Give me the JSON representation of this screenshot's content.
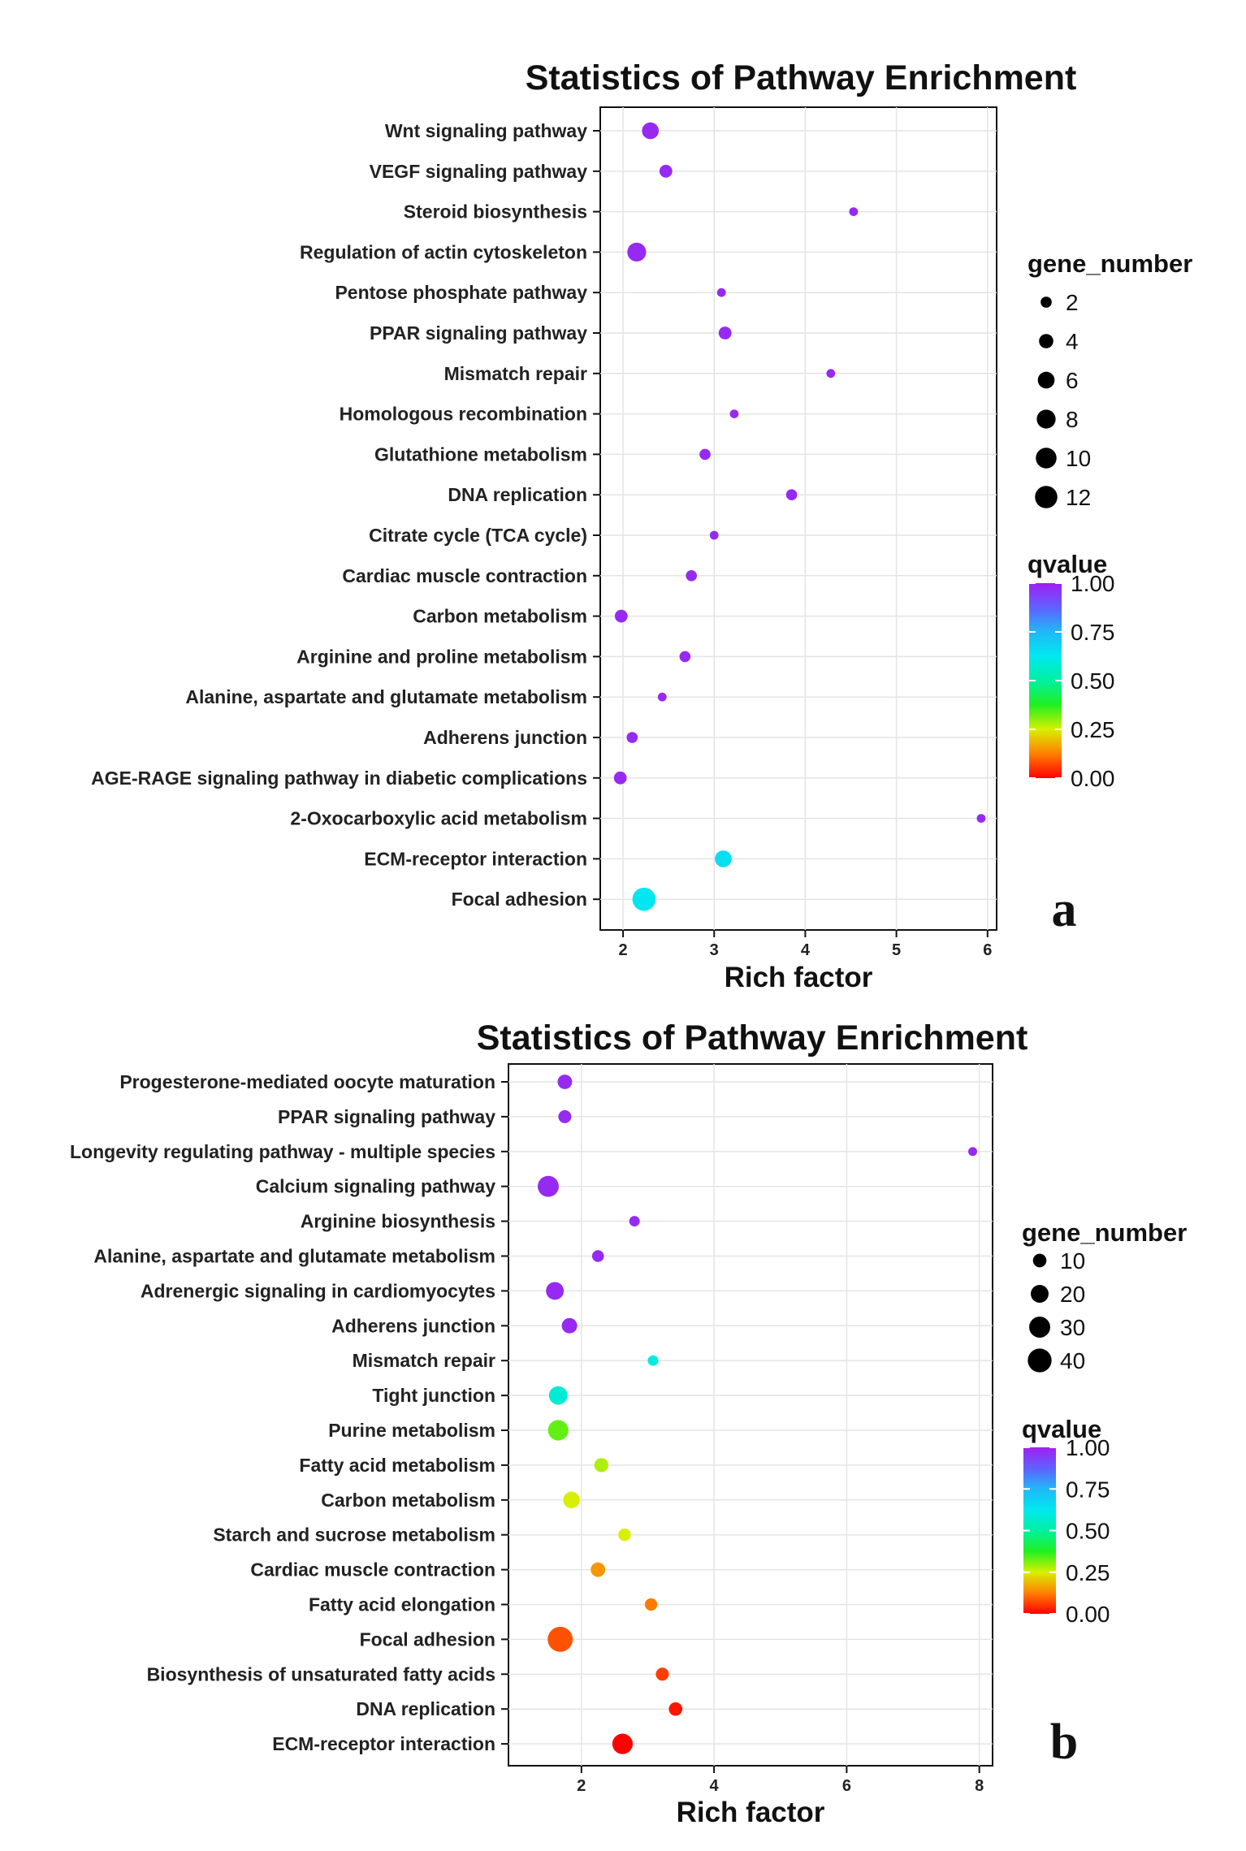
{
  "chart_data": [
    {
      "panel_label": "a",
      "type": "scatter",
      "title": "Statistics of Pathway Enrichment",
      "xlabel": "Rich factor",
      "ylabel": "",
      "xlim": [
        1.75,
        6.1
      ],
      "xticks": [
        "2",
        "3",
        "4",
        "5",
        "6"
      ],
      "grid": true,
      "categories": [
        "Wnt signaling pathway",
        "VEGF signaling pathway",
        "Steroid biosynthesis",
        "Regulation of actin cytoskeleton",
        "Pentose phosphate pathway",
        "PPAR signaling pathway",
        "Mismatch repair",
        "Homologous recombination",
        "Glutathione metabolism",
        "DNA replication",
        "Citrate cycle (TCA cycle)",
        "Cardiac muscle contraction",
        "Carbon metabolism",
        "Arginine and proline metabolism",
        "Alanine, aspartate and glutamate metabolism",
        "Adherens junction",
        "AGE-RAGE signaling pathway in diabetic complications",
        "2-Oxocarboxylic acid metabolism",
        "ECM-receptor interaction",
        "Focal adhesion"
      ],
      "rich_factor": [
        2.3,
        2.47,
        4.53,
        2.15,
        3.08,
        3.12,
        4.28,
        3.22,
        2.9,
        3.85,
        3.0,
        2.75,
        1.98,
        2.68,
        2.43,
        2.1,
        1.97,
        5.93,
        3.1,
        2.23
      ],
      "gene_number": [
        6,
        3,
        1,
        8,
        1,
        3,
        1,
        1,
        2,
        2,
        1,
        2,
        3,
        2,
        1,
        2,
        3,
        1,
        6,
        13
      ],
      "qvalue": [
        0.98,
        0.98,
        0.98,
        0.98,
        0.98,
        0.98,
        0.98,
        0.98,
        0.98,
        0.98,
        0.98,
        0.98,
        0.98,
        0.98,
        0.98,
        0.98,
        0.98,
        0.98,
        0.65,
        0.63
      ],
      "size_legend": {
        "title": "gene_number",
        "values": [
          2,
          4,
          6,
          8,
          10,
          12
        ],
        "labels": [
          "2",
          "4",
          "6",
          "8",
          "10",
          "12"
        ]
      },
      "color_legend": {
        "title": "qvalue",
        "labels": [
          "1.00",
          "0.75",
          "0.50",
          "0.25",
          "0.00"
        ],
        "values": [
          1.0,
          0.75,
          0.5,
          0.25,
          0.0
        ]
      }
    },
    {
      "panel_label": "b",
      "type": "scatter",
      "title": "Statistics of Pathway Enrichment",
      "xlabel": "Rich factor",
      "ylabel": "",
      "xlim": [
        0.9,
        8.2
      ],
      "xticks": [
        "2",
        "4",
        "6",
        "8"
      ],
      "grid": true,
      "categories": [
        "Progesterone-mediated oocyte maturation",
        "PPAR signaling pathway",
        "Longevity regulating pathway - multiple species",
        "Calcium signaling pathway",
        "Arginine biosynthesis",
        "Alanine, aspartate and glutamate metabolism",
        "Adrenergic signaling in cardiomyocytes",
        "Adherens junction",
        "Mismatch repair",
        "Tight junction",
        "Purine metabolism",
        "Fatty acid metabolism",
        "Carbon metabolism",
        "Starch and sucrose metabolism",
        "Cardiac muscle contraction",
        "Fatty acid elongation",
        "Focal adhesion",
        "Biosynthesis of unsaturated fatty acids",
        "DNA replication",
        "ECM-receptor interaction"
      ],
      "rich_factor": [
        1.75,
        1.75,
        7.9,
        1.5,
        2.8,
        2.25,
        1.6,
        1.82,
        3.08,
        1.65,
        1.65,
        2.3,
        1.85,
        2.65,
        2.25,
        3.05,
        1.68,
        3.22,
        3.42,
        2.62
      ],
      "gene_number": [
        12,
        9,
        3,
        30,
        5,
        7,
        20,
        14,
        5,
        22,
        28,
        11,
        17,
        8,
        12,
        8,
        45,
        9,
        10,
        28
      ],
      "qvalue": [
        0.98,
        0.98,
        0.98,
        0.98,
        0.98,
        0.98,
        0.98,
        0.98,
        0.6,
        0.58,
        0.33,
        0.28,
        0.25,
        0.25,
        0.15,
        0.12,
        0.08,
        0.06,
        0.02,
        0.0
      ],
      "size_legend": {
        "title": "gene_number",
        "values": [
          10,
          20,
          30,
          40
        ],
        "labels": [
          "10",
          "20",
          "30",
          "40"
        ]
      },
      "color_legend": {
        "title": "qvalue",
        "labels": [
          "1.00",
          "0.75",
          "0.50",
          "0.25",
          "0.00"
        ],
        "values": [
          1.0,
          0.75,
          0.5,
          0.25,
          0.0
        ]
      }
    }
  ]
}
